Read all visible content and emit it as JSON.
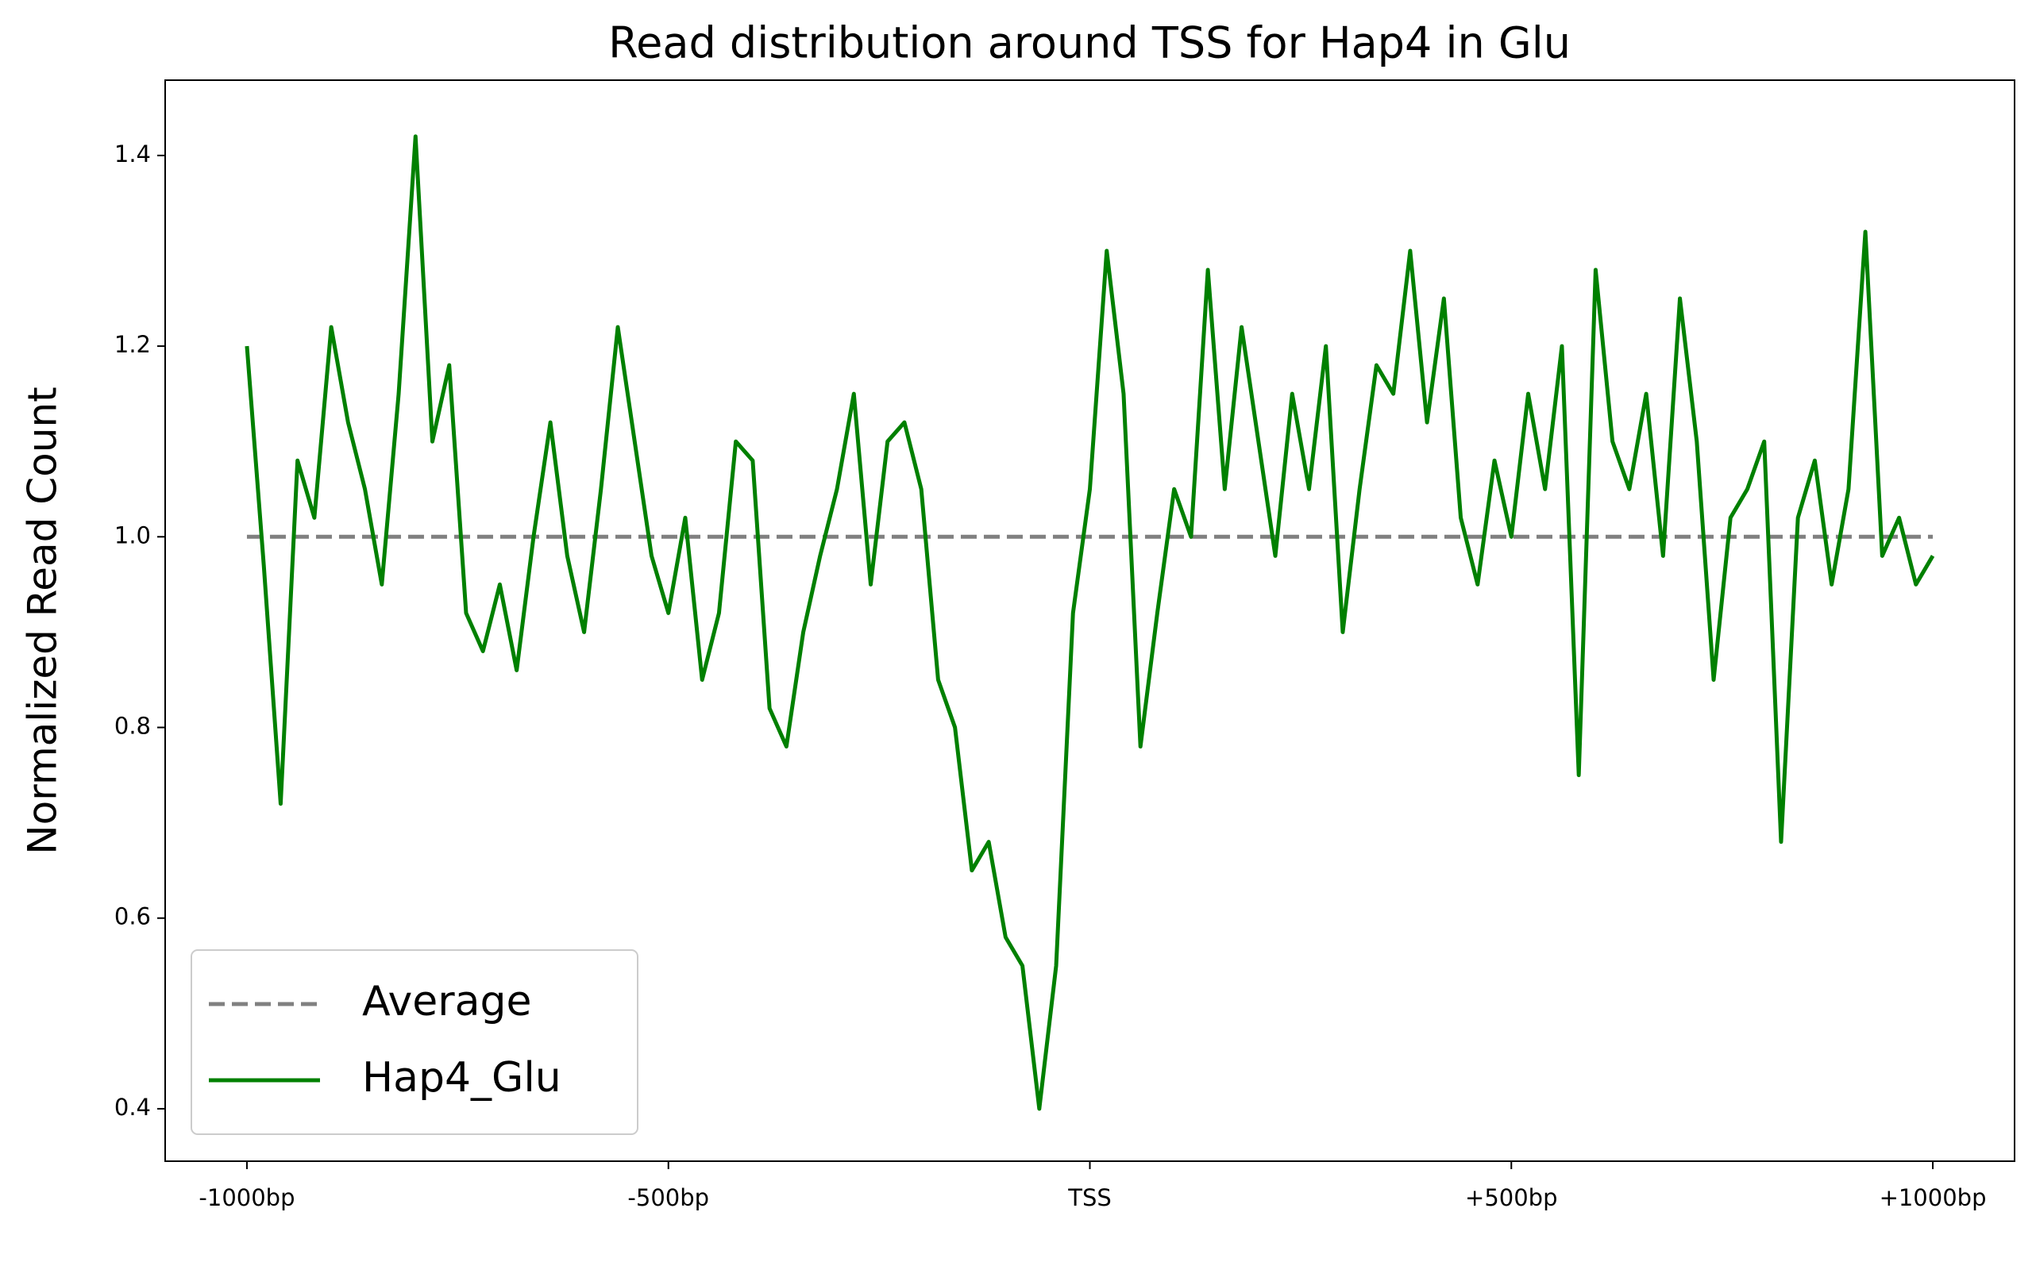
{
  "chart_data": {
    "type": "line",
    "title": "Read distribution around TSS for Hap4 in Glu",
    "ylabel": "Normalized Read Count",
    "xlim": [
      -1097,
      1097
    ],
    "ylim": [
      0.345,
      1.479
    ],
    "xticks": [
      {
        "value": -1000,
        "label": "-1000bp"
      },
      {
        "value": -500,
        "label": "-500bp"
      },
      {
        "value": 0,
        "label": "TSS"
      },
      {
        "value": 500,
        "label": "+500bp"
      },
      {
        "value": 1000,
        "label": "+1000bp"
      }
    ],
    "yticks": [
      {
        "value": 0.4,
        "label": "0.4"
      },
      {
        "value": 0.6,
        "label": "0.6"
      },
      {
        "value": 0.8,
        "label": "0.8"
      },
      {
        "value": 1.0,
        "label": "1.0"
      },
      {
        "value": 1.2,
        "label": "1.2"
      },
      {
        "value": 1.4,
        "label": "1.4"
      }
    ],
    "legend": "lower left",
    "series": [
      {
        "name": "Average",
        "color": "#808080",
        "dashed": true,
        "x": [
          -1000,
          1000
        ],
        "values": [
          1.0,
          1.0
        ]
      },
      {
        "name": "Hap4_Glu",
        "color": "#008000",
        "dashed": false,
        "x": [
          -1000,
          -980,
          -960,
          -940,
          -920,
          -900,
          -880,
          -860,
          -840,
          -820,
          -800,
          -780,
          -760,
          -740,
          -720,
          -700,
          -680,
          -660,
          -640,
          -620,
          -600,
          -580,
          -560,
          -540,
          -520,
          -500,
          -480,
          -460,
          -440,
          -420,
          -400,
          -380,
          -360,
          -340,
          -320,
          -300,
          -280,
          -260,
          -240,
          -220,
          -200,
          -180,
          -160,
          -140,
          -120,
          -100,
          -80,
          -60,
          -40,
          -20,
          0,
          20,
          40,
          60,
          80,
          100,
          120,
          140,
          160,
          180,
          200,
          220,
          240,
          260,
          280,
          300,
          320,
          340,
          360,
          380,
          400,
          420,
          440,
          460,
          480,
          500,
          520,
          540,
          560,
          580,
          600,
          620,
          640,
          660,
          680,
          700,
          720,
          740,
          760,
          780,
          800,
          820,
          840,
          860,
          880,
          900,
          920,
          940,
          960,
          980,
          1000
        ],
        "values": [
          1.2,
          0.97,
          0.72,
          1.08,
          1.02,
          1.22,
          1.12,
          1.05,
          0.95,
          1.15,
          1.42,
          1.1,
          1.18,
          0.92,
          0.88,
          0.95,
          0.86,
          1.0,
          1.12,
          0.98,
          0.9,
          1.05,
          1.22,
          1.1,
          0.98,
          0.92,
          1.02,
          0.85,
          0.92,
          1.1,
          1.08,
          0.82,
          0.78,
          0.9,
          0.98,
          1.05,
          1.15,
          0.95,
          1.1,
          1.12,
          1.05,
          0.85,
          0.8,
          0.65,
          0.68,
          0.58,
          0.55,
          0.4,
          0.55,
          0.92,
          1.05,
          1.3,
          1.15,
          0.78,
          0.92,
          1.05,
          1.0,
          1.28,
          1.05,
          1.22,
          1.1,
          0.98,
          1.15,
          1.05,
          1.2,
          0.9,
          1.05,
          1.18,
          1.15,
          1.3,
          1.12,
          1.25,
          1.02,
          0.95,
          1.08,
          1.0,
          1.15,
          1.05,
          1.2,
          0.75,
          1.28,
          1.1,
          1.05,
          1.15,
          0.98,
          1.25,
          1.1,
          0.85,
          1.02,
          1.05,
          1.1,
          0.68,
          1.02,
          1.08,
          0.95,
          1.05,
          1.32,
          0.98,
          1.02,
          0.95,
          0.98
        ]
      }
    ]
  }
}
